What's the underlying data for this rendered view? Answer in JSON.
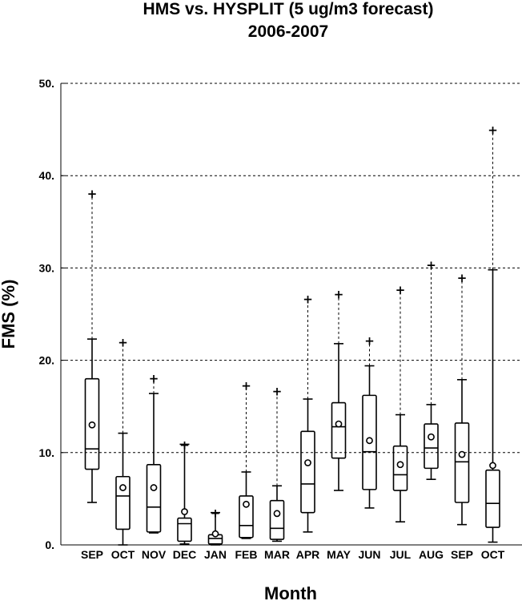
{
  "chart_data": {
    "type": "box",
    "title": "HMS vs. HYSPLIT (5 ug/m3 forecast)",
    "subtitle": "2006-2007",
    "xlabel": "Month",
    "ylabel": "FMS (%)",
    "ylim": [
      0,
      50
    ],
    "yticks": [
      0,
      10,
      20,
      30,
      40,
      50
    ],
    "ytick_labels": [
      "0.",
      "10.",
      "20.",
      "30.",
      "40.",
      "50."
    ],
    "grid": "horizontal dashed",
    "categories": [
      "SEP",
      "OCT",
      "NOV",
      "DEC",
      "JAN",
      "FEB",
      "MAR",
      "APR",
      "MAY",
      "JUN",
      "JUL",
      "AUG",
      "SEP",
      "OCT"
    ],
    "boxes": [
      {
        "whisker_low": 4.6,
        "q1": 8.2,
        "median": 10.4,
        "q3": 18.0,
        "whisker_high": 22.3,
        "mean": 13.0,
        "outlier_max": 38.1
      },
      {
        "whisker_low": 0.0,
        "q1": 1.7,
        "median": 5.3,
        "q3": 7.4,
        "whisker_high": 12.1,
        "mean": 6.2,
        "outlier_max": 22.0
      },
      {
        "whisker_low": 1.3,
        "q1": 1.4,
        "median": 4.1,
        "q3": 8.7,
        "whisker_high": 16.4,
        "mean": 6.2,
        "outlier_max": 18.1
      },
      {
        "whisker_low": 0.1,
        "q1": 0.4,
        "median": 2.3,
        "q3": 2.9,
        "whisker_high": 10.9,
        "mean": 3.6,
        "outlier_max": 10.9
      },
      {
        "whisker_low": 0.0,
        "q1": 0.1,
        "median": 0.7,
        "q3": 1.1,
        "whisker_high": 3.5,
        "mean": 1.2,
        "outlier_max": 3.5
      },
      {
        "whisker_low": 0.7,
        "q1": 0.8,
        "median": 2.1,
        "q3": 5.3,
        "whisker_high": 7.9,
        "mean": 4.4,
        "outlier_max": 17.3
      },
      {
        "whisker_low": 0.4,
        "q1": 0.6,
        "median": 1.8,
        "q3": 4.8,
        "whisker_high": 6.4,
        "mean": 3.4,
        "outlier_max": 16.7
      },
      {
        "whisker_low": 1.4,
        "q1": 3.5,
        "median": 6.6,
        "q3": 12.3,
        "whisker_high": 15.8,
        "mean": 8.9,
        "outlier_max": 26.7
      },
      {
        "whisker_low": 5.9,
        "q1": 9.4,
        "median": 12.8,
        "q3": 15.4,
        "whisker_high": 21.8,
        "mean": 13.1,
        "outlier_max": 27.2
      },
      {
        "whisker_low": 4.0,
        "q1": 6.0,
        "median": 10.1,
        "q3": 16.2,
        "whisker_high": 19.4,
        "mean": 11.3,
        "outlier_max": 22.2
      },
      {
        "whisker_low": 2.5,
        "q1": 5.9,
        "median": 7.6,
        "q3": 10.7,
        "whisker_high": 14.1,
        "mean": 8.7,
        "outlier_max": 27.7
      },
      {
        "whisker_low": 7.1,
        "q1": 8.3,
        "median": 10.5,
        "q3": 13.1,
        "whisker_high": 15.2,
        "mean": 11.7,
        "outlier_max": 30.4
      },
      {
        "whisker_low": 2.2,
        "q1": 4.6,
        "median": 9.0,
        "q3": 13.2,
        "whisker_high": 17.9,
        "mean": 9.8,
        "outlier_max": 29.0
      },
      {
        "whisker_low": 0.3,
        "q1": 1.9,
        "median": 4.5,
        "q3": 8.1,
        "whisker_high": 29.8,
        "mean": 8.6,
        "outlier_max": 45.0
      }
    ]
  }
}
